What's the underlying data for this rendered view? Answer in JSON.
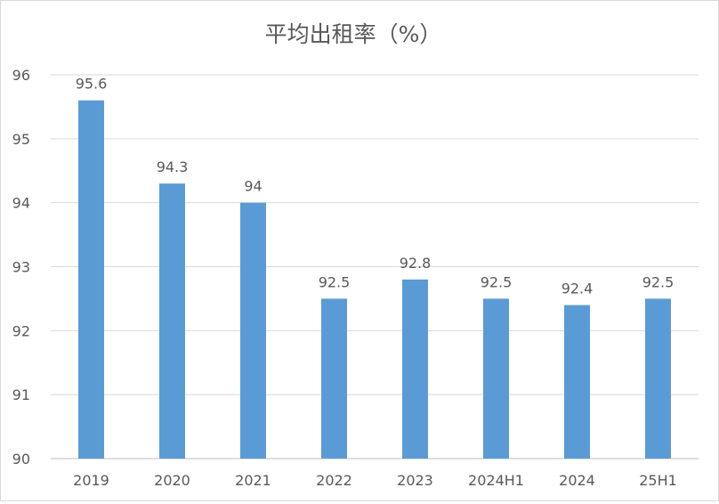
{
  "chart_data": {
    "type": "bar",
    "title": "平均出租率（%）",
    "categories": [
      "2019",
      "2020",
      "2021",
      "2022",
      "2023",
      "2024H1",
      "2024",
      "25H1"
    ],
    "values": [
      95.6,
      94.3,
      94,
      92.5,
      92.8,
      92.5,
      92.4,
      92.5
    ],
    "data_labels": [
      "95.6",
      "94.3",
      "94",
      "92.5",
      "92.8",
      "92.5",
      "92.4",
      "92.5"
    ],
    "ylim": [
      90,
      96
    ],
    "yticks": [
      90,
      91,
      92,
      93,
      94,
      95,
      96
    ],
    "xlabel": "",
    "ylabel": "",
    "grid": true,
    "legend": "none",
    "colors": {
      "bar": "#5b9bd5",
      "grid": "#d9d9d9",
      "axis": "#bfbfbf",
      "text": "#595959",
      "title": "#595959"
    }
  }
}
